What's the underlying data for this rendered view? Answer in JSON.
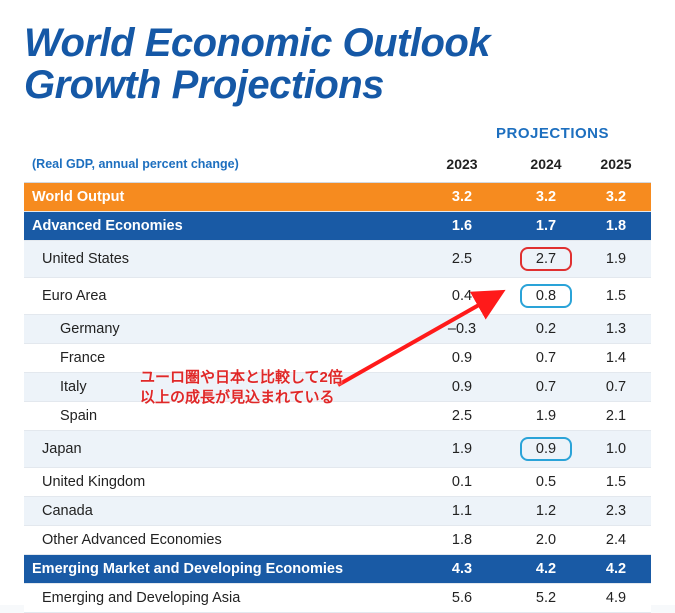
{
  "title_line1": "World Economic Outlook",
  "title_line2": "Growth Projections",
  "subtitle": "(Real GDP, annual percent change)",
  "projections_heading": "PROJECTIONS",
  "columns": {
    "y2023": "2023",
    "y2024": "2024",
    "y2025": "2025"
  },
  "annotation": {
    "line1": "ユーロ圏や日本と比較して2倍",
    "line2": "以上の成長が見込まれている",
    "color": "#e02828",
    "arrow_color": "#ff1a1a"
  },
  "highlight": {
    "red": {
      "row": "United States",
      "col": "2024",
      "border": "#e03030"
    },
    "blue": [
      {
        "row": "Euro Area",
        "col": "2024",
        "border": "#2aa3d8"
      },
      {
        "row": "Japan",
        "col": "2024",
        "border": "#2aa3d8"
      }
    ]
  },
  "colors": {
    "title": "#1558a6",
    "proj_heading": "#1d6fbf",
    "world_row_bg": "#f68b1f",
    "group_row_bg": "#195aa5",
    "stripe_even": "#edf3f9",
    "stripe_odd": "#ffffff",
    "border": "#e3e8ee"
  },
  "rows": [
    {
      "kind": "world",
      "label": "World Output",
      "v": [
        "3.2",
        "3.2",
        "3.2"
      ]
    },
    {
      "kind": "group",
      "label": "Advanced Economies",
      "v": [
        "1.6",
        "1.7",
        "1.8"
      ]
    },
    {
      "kind": "l1",
      "stripe": "even",
      "label": "United States",
      "v": [
        "2.5",
        "2.7",
        "1.9"
      ],
      "hl": {
        "2024": "red"
      }
    },
    {
      "kind": "l1",
      "stripe": "odd",
      "label": "Euro Area",
      "v": [
        "0.4",
        "0.8",
        "1.5"
      ],
      "hl": {
        "2024": "blue"
      }
    },
    {
      "kind": "l2",
      "stripe": "even",
      "label": "Germany",
      "v": [
        "–0.3",
        "0.2",
        "1.3"
      ]
    },
    {
      "kind": "l2",
      "stripe": "odd",
      "label": "France",
      "v": [
        "0.9",
        "0.7",
        "1.4"
      ]
    },
    {
      "kind": "l2",
      "stripe": "even",
      "label": "Italy",
      "v": [
        "0.9",
        "0.7",
        "0.7"
      ]
    },
    {
      "kind": "l2",
      "stripe": "odd",
      "label": "Spain",
      "v": [
        "2.5",
        "1.9",
        "2.1"
      ]
    },
    {
      "kind": "l1",
      "stripe": "even",
      "label": "Japan",
      "v": [
        "1.9",
        "0.9",
        "1.0"
      ],
      "hl": {
        "2024": "blue"
      }
    },
    {
      "kind": "l1",
      "stripe": "odd",
      "label": "United Kingdom",
      "v": [
        "0.1",
        "0.5",
        "1.5"
      ]
    },
    {
      "kind": "l1",
      "stripe": "even",
      "label": "Canada",
      "v": [
        "1.1",
        "1.2",
        "2.3"
      ]
    },
    {
      "kind": "l1",
      "stripe": "odd",
      "label": "Other Advanced Economies",
      "v": [
        "1.8",
        "2.0",
        "2.4"
      ]
    },
    {
      "kind": "group",
      "label": "Emerging Market and Developing Economies",
      "v": [
        "4.3",
        "4.2",
        "4.2"
      ]
    },
    {
      "kind": "l1",
      "stripe": "odd",
      "label": "Emerging and Developing Asia",
      "v": [
        "5.6",
        "5.2",
        "4.9"
      ]
    }
  ]
}
